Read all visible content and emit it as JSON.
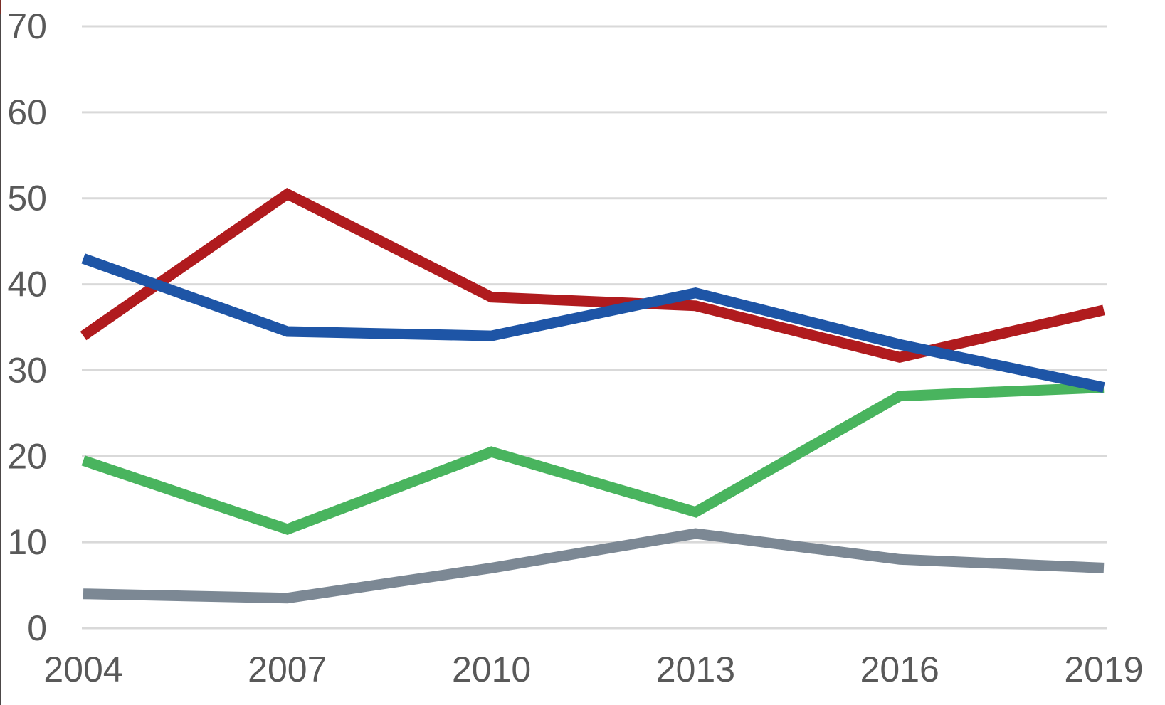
{
  "chart_data": {
    "type": "line",
    "title": "",
    "xlabel": "",
    "ylabel": "",
    "categories": [
      "2004",
      "2007",
      "2010",
      "2013",
      "2016",
      "2019"
    ],
    "series": [
      {
        "name": "dark-red-series",
        "color": "#B01B1E",
        "values": [
          34,
          50.5,
          38.5,
          37.5,
          31.5,
          37
        ]
      },
      {
        "name": "green-series",
        "color": "#49B45E",
        "values": [
          19.5,
          11.5,
          20.5,
          13.5,
          27,
          28
        ]
      },
      {
        "name": "gray-series",
        "color": "#7C8894",
        "values": [
          4,
          3.5,
          7,
          11,
          8,
          7
        ]
      },
      {
        "name": "blue-series",
        "color": "#1E55A6",
        "values": [
          43,
          34.5,
          34,
          39,
          33,
          28
        ]
      }
    ],
    "ylim": [
      0,
      70
    ],
    "ytick_step": 10,
    "y_tick_labels": [
      "0",
      "10",
      "20",
      "30",
      "40",
      "50",
      "60",
      "70"
    ],
    "grid": true,
    "legend": "none",
    "gridline_color": "#D9D9D9",
    "axis_text_color": "#595959",
    "line_width": 15
  }
}
